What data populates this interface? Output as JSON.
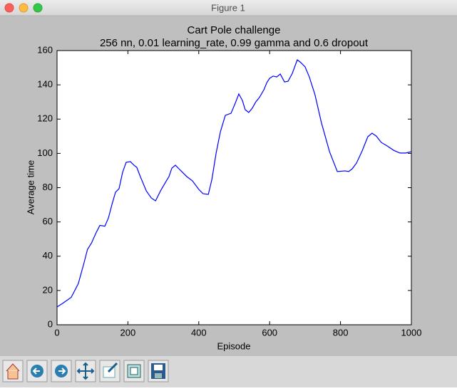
{
  "window": {
    "title": "Figure 1"
  },
  "chart_data": {
    "type": "line",
    "title": "Cart Pole challenge",
    "subtitle": "256 nn, 0.01 learning_rate, 0.99 gamma and 0.6 dropout",
    "xlabel": "Episode",
    "ylabel": "Average time",
    "x": [
      0,
      16,
      40,
      60,
      76,
      86,
      97,
      111,
      121,
      135,
      145,
      155,
      165,
      175,
      185,
      195,
      207,
      217,
      225,
      235,
      252,
      266,
      278,
      292,
      306,
      316,
      324,
      334,
      346,
      366,
      382,
      400,
      412,
      427,
      437,
      449,
      461,
      475,
      491,
      503,
      513,
      523,
      531,
      541,
      551,
      561,
      571,
      584,
      592,
      600,
      610,
      620,
      630,
      642,
      652,
      664,
      678,
      688,
      700,
      712,
      728,
      746,
      769,
      791,
      813,
      823,
      833,
      845,
      861,
      877,
      889,
      901,
      915,
      932,
      950,
      968,
      984,
      1000
    ],
    "series": [
      {
        "color": "#0000ff",
        "values": [
          10.4,
          12.5,
          16,
          24,
          36,
          44,
          47.6,
          54,
          58,
          57.5,
          62.3,
          70.2,
          77.3,
          79.4,
          88.9,
          94.8,
          95.2,
          93.1,
          91.9,
          86.5,
          78.1,
          74.0,
          72.3,
          78.1,
          83.1,
          86.5,
          91.4,
          93.1,
          90.6,
          86.5,
          84.0,
          79.0,
          76.5,
          76.1,
          84.8,
          100.2,
          112.6,
          122.2,
          123.4,
          129.3,
          134.7,
          130.9,
          125.5,
          123.9,
          126.4,
          130.1,
          132.6,
          137.2,
          141.3,
          143.8,
          145.1,
          144.6,
          146.3,
          141.7,
          142.1,
          146.7,
          154.6,
          153.0,
          150.5,
          144.6,
          134.2,
          118.0,
          101.0,
          89.4,
          89.8,
          89.4,
          91.0,
          94.3,
          101.4,
          109.7,
          111.8,
          110.1,
          106.4,
          104.3,
          101.8,
          100.2,
          100.2,
          101.0
        ]
      }
    ],
    "xlim": [
      0,
      1000
    ],
    "xticks": [
      0,
      200,
      400,
      600,
      800,
      1000
    ],
    "ylim": [
      0,
      160
    ],
    "yticks": [
      0,
      20,
      40,
      60,
      80,
      100,
      120,
      140,
      160
    ],
    "grid": false
  }
}
